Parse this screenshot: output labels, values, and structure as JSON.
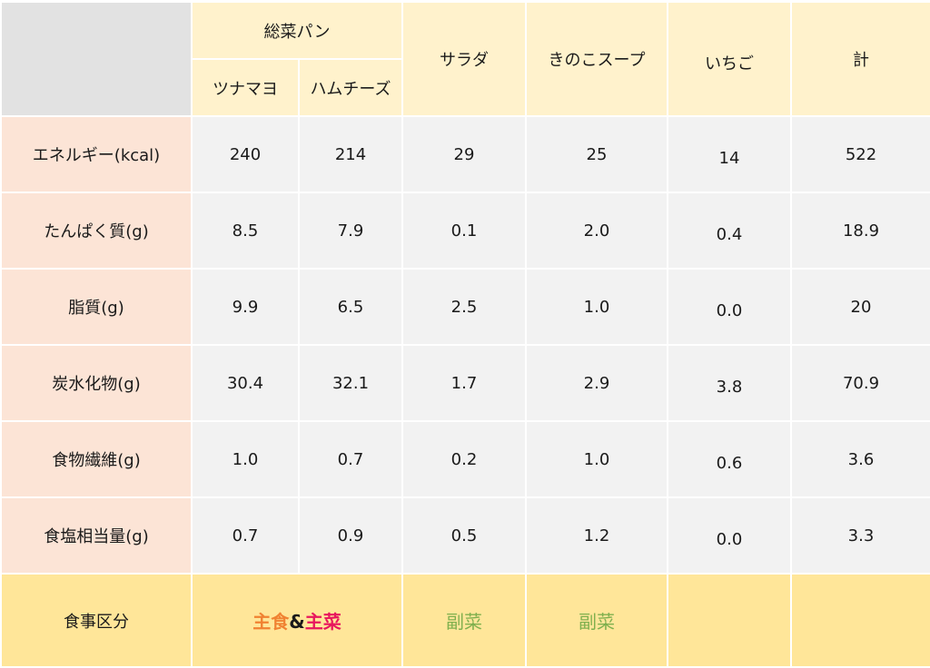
{
  "header": {
    "group_label": "総菜パン",
    "sub_columns": [
      "ツナマヨ",
      "ハムチーズ"
    ],
    "columns": [
      "サラダ",
      "きのこスープ",
      "いちご",
      "計"
    ]
  },
  "rows": [
    {
      "label": "エネルギー(kcal)",
      "values": [
        "240",
        "214",
        "29",
        "25",
        "14",
        "522"
      ]
    },
    {
      "label": "たんぱく質(g)",
      "values": [
        "8.5",
        "7.9",
        "0.1",
        "2.0",
        "0.4",
        "18.9"
      ]
    },
    {
      "label": "脂質(g)",
      "values": [
        "9.9",
        "6.5",
        "2.5",
        "1.0",
        "0.0",
        "20"
      ]
    },
    {
      "label": "炭水化物(g)",
      "values": [
        "30.4",
        "32.1",
        "1.7",
        "2.9",
        "3.8",
        "70.9"
      ]
    },
    {
      "label": "食物繊維(g)",
      "values": [
        "1.0",
        "0.7",
        "0.2",
        "1.0",
        "0.6",
        "3.6"
      ]
    },
    {
      "label": "食塩相当量(g)",
      "values": [
        "0.7",
        "0.9",
        "0.5",
        "1.2",
        "0.0",
        "3.3"
      ]
    }
  ],
  "category_row": {
    "label": "食事区分",
    "pan_main": "主食",
    "pan_amp": "&",
    "pan_side": "主菜",
    "salad": "副菜",
    "soup": "副菜",
    "strawberry": "",
    "total": ""
  },
  "colors": {
    "main_food": "#f08232",
    "main_dish": "#e8175d",
    "side_dish": "#7fb04e",
    "header_bg": "#fff2cc",
    "label_bg": "#fce4d6",
    "value_bg": "#f2f2f2",
    "category_bg": "#ffe699",
    "corner_bg": "#e2e2e2"
  }
}
